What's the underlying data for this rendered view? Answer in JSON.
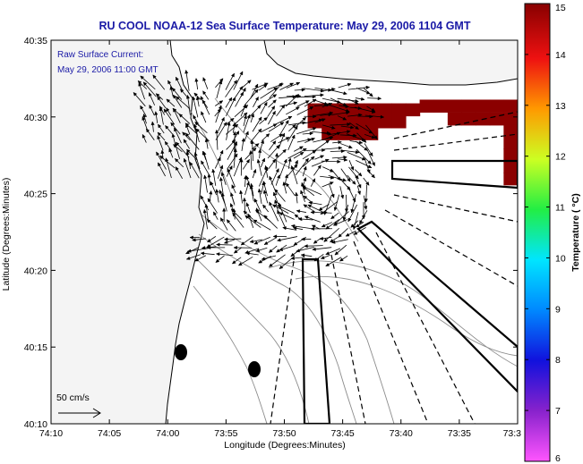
{
  "chart_data": {
    "type": "scatter",
    "title": "RU COOL  NOAA-12  Sea Surface Temperature:  May 29, 2006 1104 GMT",
    "annotation": {
      "line1": "Raw Surface Current:",
      "line2": "May 29, 2006 11:00 GMT",
      "scale_label": "50 cm/s"
    },
    "xlabel": "Longitude (Degrees:Minutes)",
    "ylabel": "Latitude (Degrees:Minutes)",
    "x_ticks": [
      "74:10",
      "74:05",
      "74:00",
      "73:55",
      "73:50",
      "73:45",
      "73:40",
      "73:35",
      "73:3"
    ],
    "y_ticks": [
      "40:10",
      "40:15",
      "40:20",
      "40:25",
      "40:30",
      "40:35"
    ],
    "xlim": [
      -74.1667,
      -73.5
    ],
    "ylim": [
      40.1667,
      40.5833
    ],
    "colorbar": {
      "label": "Temperature ( °C)",
      "ticks": [
        "6",
        "7",
        "8",
        "9",
        "10",
        "11",
        "12",
        "13",
        "14",
        "15"
      ],
      "range": [
        6,
        15
      ]
    },
    "sst_cells_lon_lat": [
      [
        -73.79,
        40.508
      ],
      [
        -73.77,
        40.508
      ],
      [
        -73.75,
        40.508
      ],
      [
        -73.73,
        40.508
      ],
      [
        -73.71,
        40.508
      ],
      [
        -73.69,
        40.508
      ],
      [
        -73.67,
        40.508
      ],
      [
        -73.65,
        40.508
      ],
      [
        -73.79,
        40.495
      ],
      [
        -73.77,
        40.495
      ],
      [
        -73.75,
        40.495
      ],
      [
        -73.73,
        40.495
      ],
      [
        -73.71,
        40.495
      ],
      [
        -73.69,
        40.495
      ],
      [
        -73.67,
        40.495
      ],
      [
        -73.77,
        40.482
      ],
      [
        -73.75,
        40.482
      ],
      [
        -73.73,
        40.482
      ],
      [
        -73.71,
        40.482
      ],
      [
        -73.63,
        40.512
      ],
      [
        -73.61,
        40.512
      ],
      [
        -73.59,
        40.512
      ],
      [
        -73.57,
        40.512
      ],
      [
        -73.55,
        40.512
      ],
      [
        -73.53,
        40.512
      ],
      [
        -73.51,
        40.512
      ],
      [
        -73.59,
        40.498
      ],
      [
        -73.57,
        40.498
      ],
      [
        -73.55,
        40.498
      ],
      [
        -73.53,
        40.498
      ],
      [
        -73.51,
        40.498
      ],
      [
        -73.51,
        40.485
      ],
      [
        -73.51,
        40.472
      ],
      [
        -73.51,
        40.459
      ],
      [
        -73.51,
        40.446
      ],
      [
        -73.51,
        40.433
      ]
    ],
    "current_vectors": {
      "grid_lon": [
        -74.02,
        -73.995,
        -73.97,
        -73.945,
        -73.92,
        -73.895,
        -73.87,
        -73.845,
        -73.82,
        -73.795,
        -73.77,
        -73.745,
        -73.72,
        -73.695
      ],
      "grid_lat": [
        40.52,
        40.495,
        40.47,
        40.445,
        40.42,
        40.395,
        40.37,
        40.345
      ],
      "note": "radial surface current arrows, cm/s"
    }
  }
}
